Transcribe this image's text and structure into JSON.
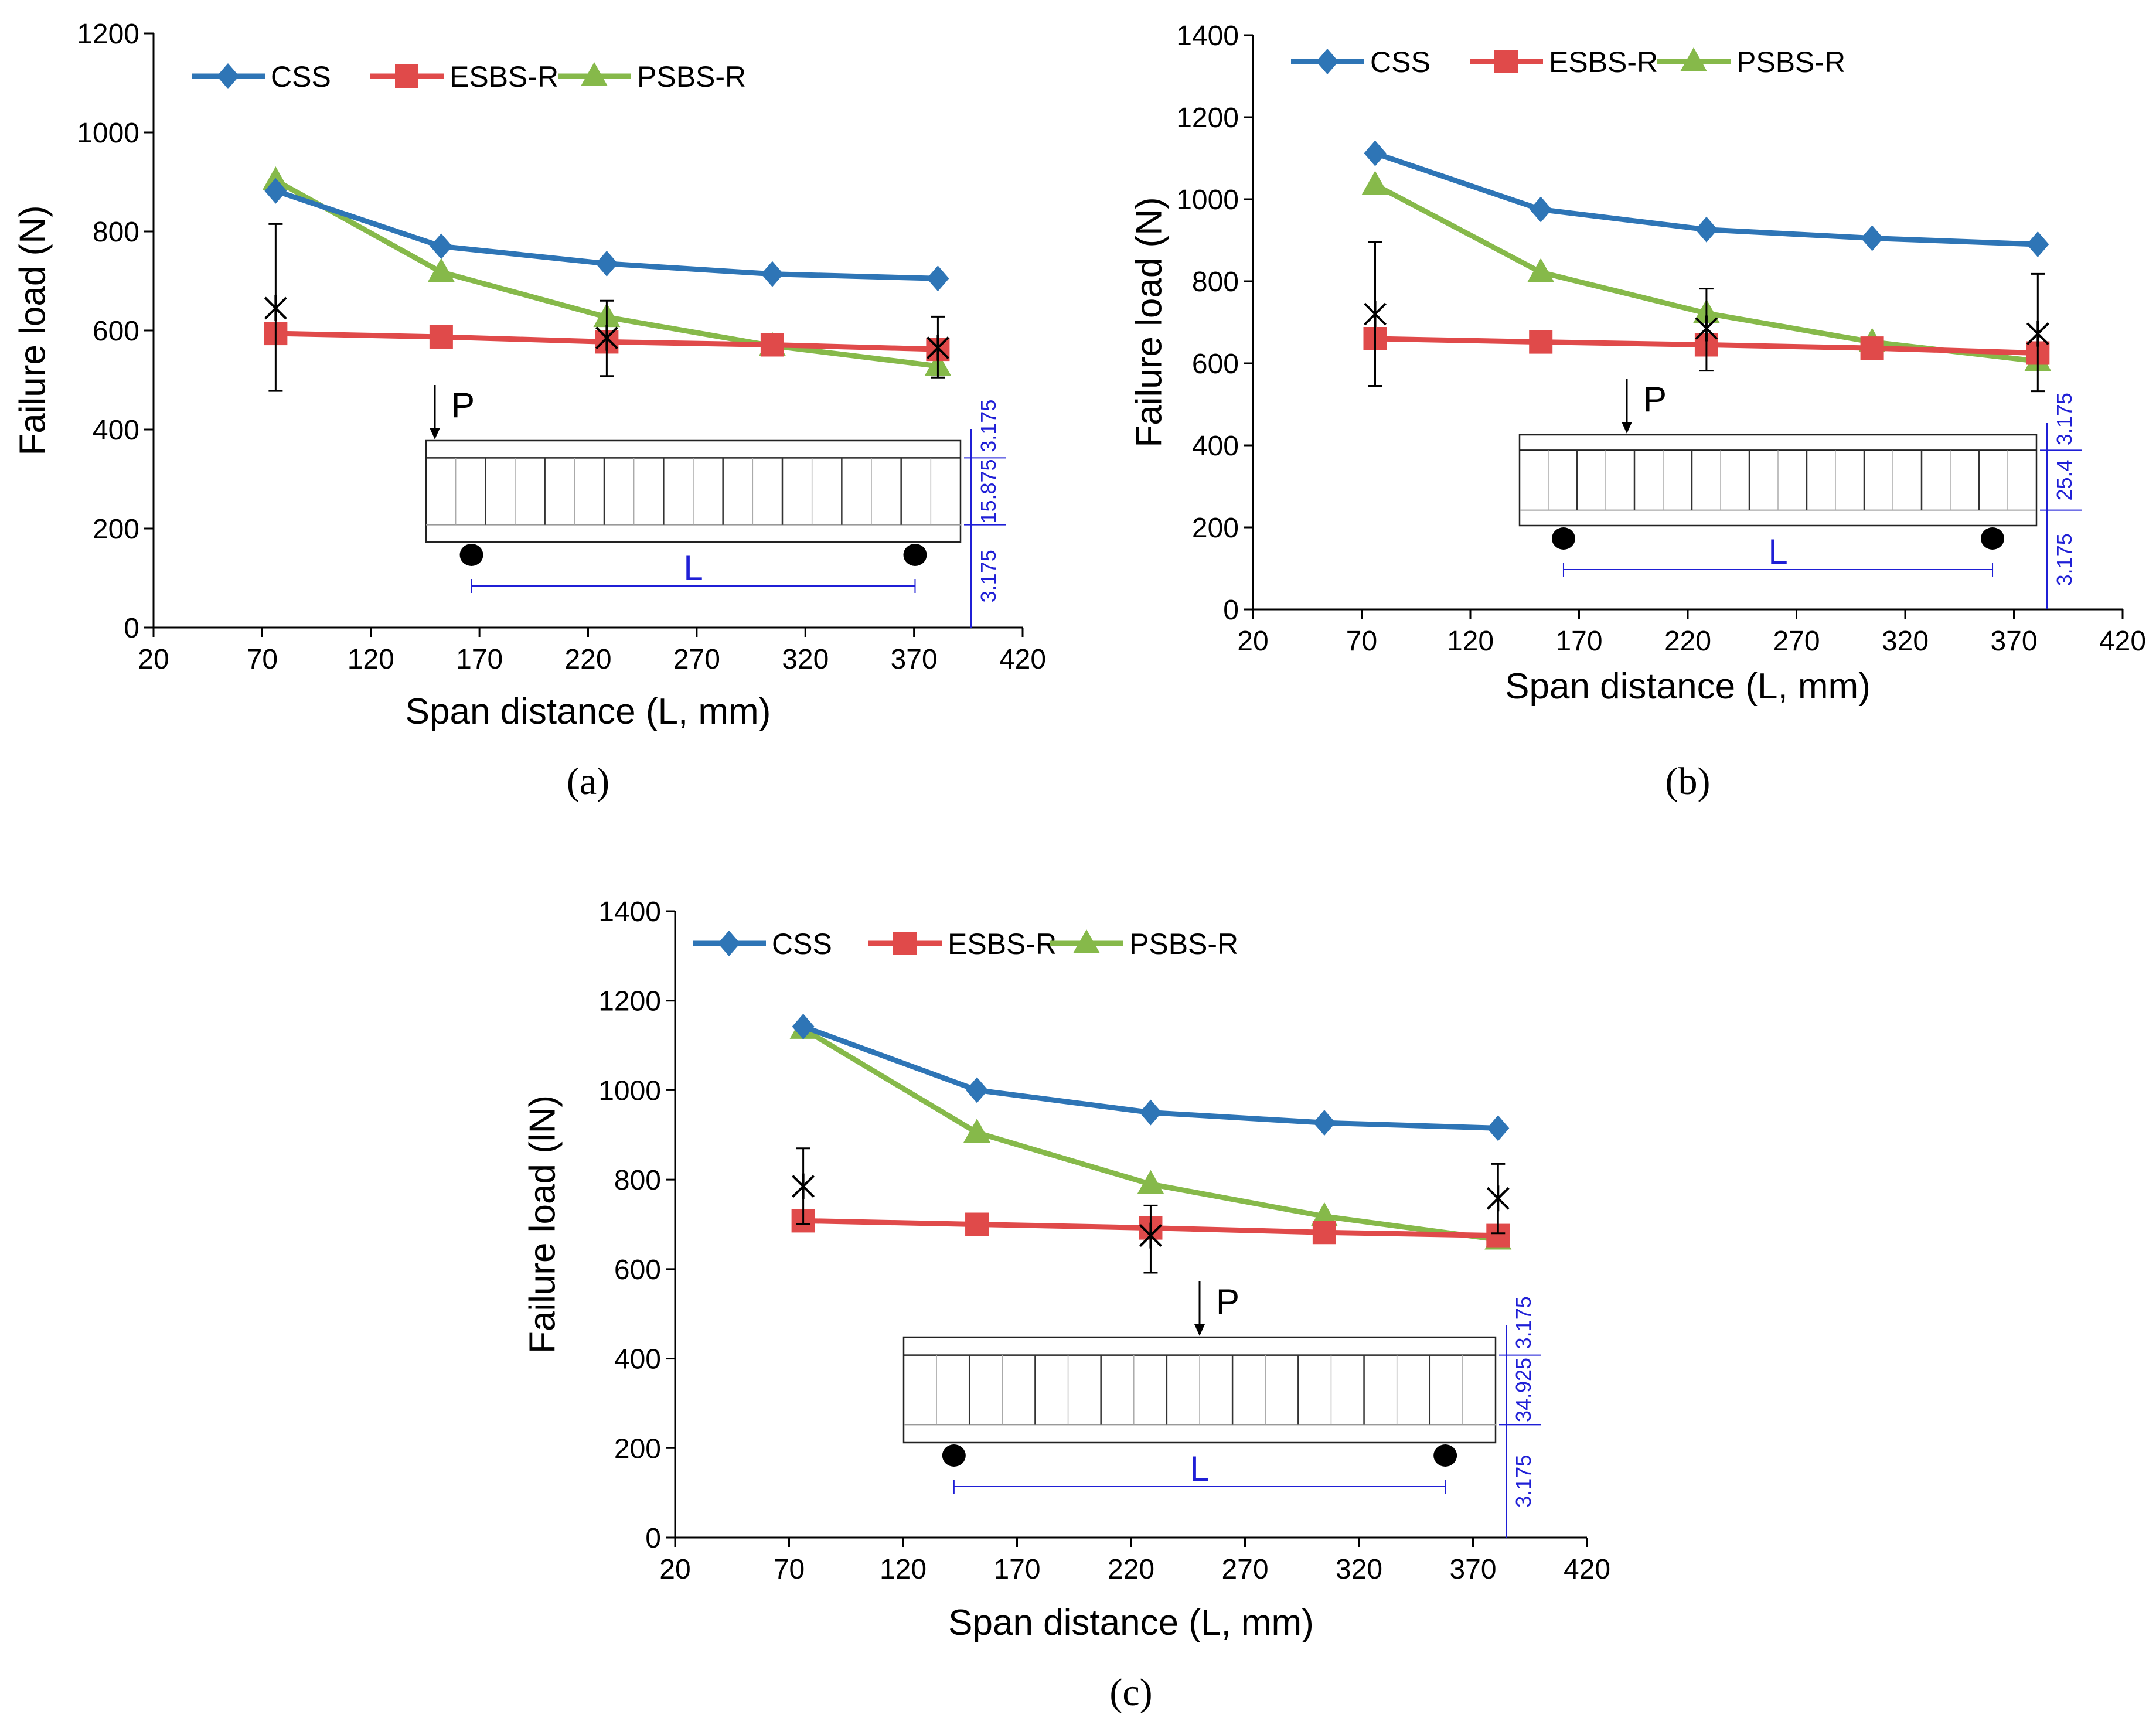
{
  "figure": {
    "series_colors": {
      "CSS": "#2E75B6",
      "ESBS-R": "#E04A4A",
      "PSBS-R": "#86B94A"
    },
    "marker_shapes": {
      "CSS": "diamond",
      "ESBS-R": "square",
      "PSBS-R": "triangle"
    },
    "error_bar_marker": "asterisk",
    "beam_load_label": "P",
    "beam_span_label": "L"
  },
  "chart_data": [
    {
      "panel_label": "(a)",
      "type": "line",
      "xlabel": "Span distance (L, mm)",
      "ylabel": "Failure load (N)",
      "xlim": [
        20,
        420
      ],
      "ylim": [
        0,
        1200
      ],
      "xticks": [
        20,
        70,
        120,
        170,
        220,
        270,
        320,
        370,
        420
      ],
      "yticks": [
        0,
        200,
        400,
        600,
        800,
        1000,
        1200
      ],
      "legend_position": "top-left",
      "x": [
        76.2,
        152.4,
        228.6,
        304.8,
        381.0
      ],
      "series": [
        {
          "name": "CSS",
          "values": [
            882,
            770,
            735,
            714,
            705
          ]
        },
        {
          "name": "ESBS-R",
          "values": [
            594,
            587,
            577,
            571,
            562
          ]
        },
        {
          "name": "PSBS-R",
          "values": [
            903,
            718,
            627,
            569,
            528
          ]
        }
      ],
      "error_points": [
        {
          "x": 76.2,
          "mean": 645,
          "low": 478,
          "high": 815
        },
        {
          "x": 228.6,
          "mean": 585,
          "low": 508,
          "high": 660
        },
        {
          "x": 381.0,
          "mean": 565,
          "low": 505,
          "high": 628
        }
      ],
      "beam_dimensions": [
        "3.175",
        "15.875",
        "3.175"
      ]
    },
    {
      "panel_label": "(b)",
      "type": "line",
      "xlabel": "Span distance (L, mm)",
      "ylabel": "Failure load (N)",
      "xlim": [
        20,
        420
      ],
      "ylim": [
        0,
        1400
      ],
      "xticks": [
        20,
        70,
        120,
        170,
        220,
        270,
        320,
        370,
        420
      ],
      "yticks": [
        0,
        200,
        400,
        600,
        800,
        1000,
        1200,
        1400
      ],
      "legend_position": "top-left",
      "x": [
        76.2,
        152.4,
        228.6,
        304.8,
        381.0
      ],
      "series": [
        {
          "name": "CSS",
          "values": [
            1112,
            975,
            926,
            905,
            890
          ]
        },
        {
          "name": "ESBS-R",
          "values": [
            660,
            652,
            645,
            637,
            625
          ]
        },
        {
          "name": "PSBS-R",
          "values": [
            1035,
            822,
            722,
            652,
            605
          ]
        }
      ],
      "error_points": [
        {
          "x": 76.2,
          "mean": 720,
          "low": 545,
          "high": 895
        },
        {
          "x": 228.6,
          "mean": 685,
          "low": 582,
          "high": 782
        },
        {
          "x": 381.0,
          "mean": 672,
          "low": 532,
          "high": 818
        }
      ],
      "beam_dimensions": [
        "3.175",
        "25.4",
        "3.175"
      ]
    },
    {
      "panel_label": "(c)",
      "type": "line",
      "xlabel": "Span distance (L, mm)",
      "ylabel": "Failure load (lN)",
      "xlim": [
        20,
        420
      ],
      "ylim": [
        0,
        1400
      ],
      "xticks": [
        20,
        70,
        120,
        170,
        220,
        270,
        320,
        370,
        420
      ],
      "yticks": [
        0,
        200,
        400,
        600,
        800,
        1000,
        1200,
        1400
      ],
      "legend_position": "top-left",
      "x": [
        76.2,
        152.4,
        228.6,
        304.8,
        381.0
      ],
      "series": [
        {
          "name": "CSS",
          "values": [
            1142,
            1000,
            950,
            927,
            915
          ]
        },
        {
          "name": "ESBS-R",
          "values": [
            708,
            700,
            692,
            682,
            675
          ]
        },
        {
          "name": "PSBS-R",
          "values": [
            1137,
            905,
            790,
            718,
            666
          ]
        }
      ],
      "error_points": [
        {
          "x": 76.2,
          "mean": 785,
          "low": 700,
          "high": 870
        },
        {
          "x": 228.6,
          "mean": 675,
          "low": 592,
          "high": 742
        },
        {
          "x": 381.0,
          "mean": 758,
          "low": 680,
          "high": 835
        }
      ],
      "beam_dimensions": [
        "3.175",
        "34.925",
        "3.175"
      ]
    }
  ]
}
